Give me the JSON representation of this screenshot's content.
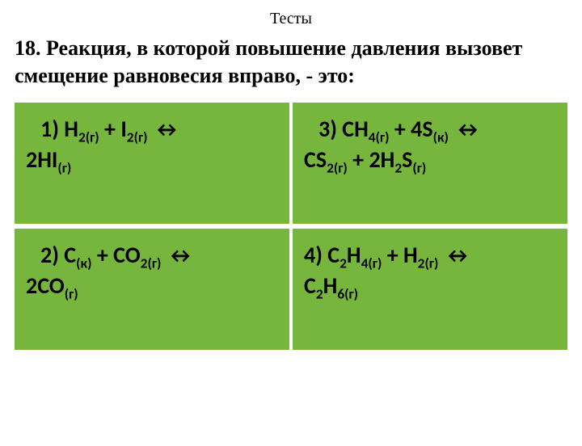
{
  "title": "Тесты",
  "question": "18. Реакция, в которой повышение давления вызовет смещение  равновесия вправо, - это:",
  "card_bg": "#77b63d",
  "options": {
    "1": {
      "num": "1)",
      "line1_html": "H<sub>2(г)</sub> + I<sub>2(г)</sub> <span class='arrow'>↔</span>",
      "line2_html": "2HI<sub>(г)</sub>"
    },
    "3": {
      "num": "3)",
      "line1_html": "CH<sub>4(г)</sub> + 4S<sub>(к)</sub> <span class='arrow'>↔</span>",
      "line2_html": "CS<sub>2(г)</sub> + 2H<sub>2</sub>S<sub>(г)</sub>"
    },
    "2": {
      "num": "2)",
      "line1_html": "C<sub>(к)</sub> + CO<sub>2(г)</sub> <span class='arrow'>↔</span>",
      "line2_html": "2CO<sub>(г)</sub>"
    },
    "4": {
      "num": "4)",
      "line1_html": "C<sub>2</sub>H<sub>4(г)</sub> + H<sub>2(г)</sub> <span class='arrow'>↔</span>",
      "line2_html": "C<sub>2</sub>H<sub>6(г)</sub>"
    }
  }
}
